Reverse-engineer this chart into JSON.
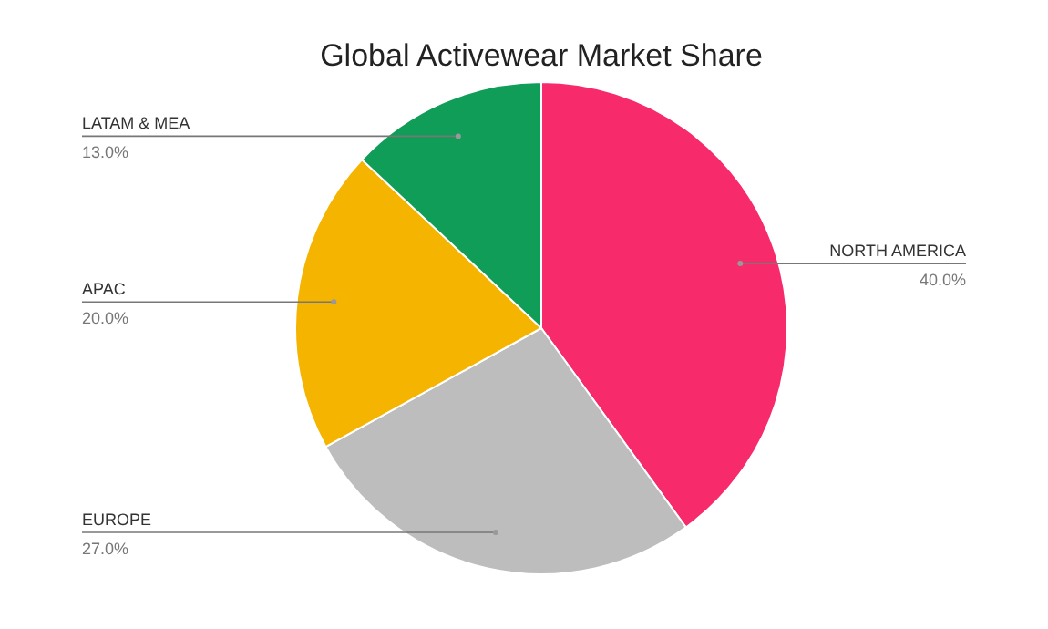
{
  "chart_data": {
    "type": "pie",
    "title": "Global Activewear Market Share",
    "categories": [
      "NORTH AMERICA",
      "EUROPE",
      "APAC",
      "LATAM & MEA"
    ],
    "values": [
      40,
      27,
      20,
      13
    ],
    "value_labels": [
      "40.0%",
      "27.0%",
      "20.0%",
      "13.0%"
    ],
    "colors": [
      "#f72a6c",
      "#bdbdbd",
      "#f4b400",
      "#0f9d58"
    ],
    "legend": false
  }
}
